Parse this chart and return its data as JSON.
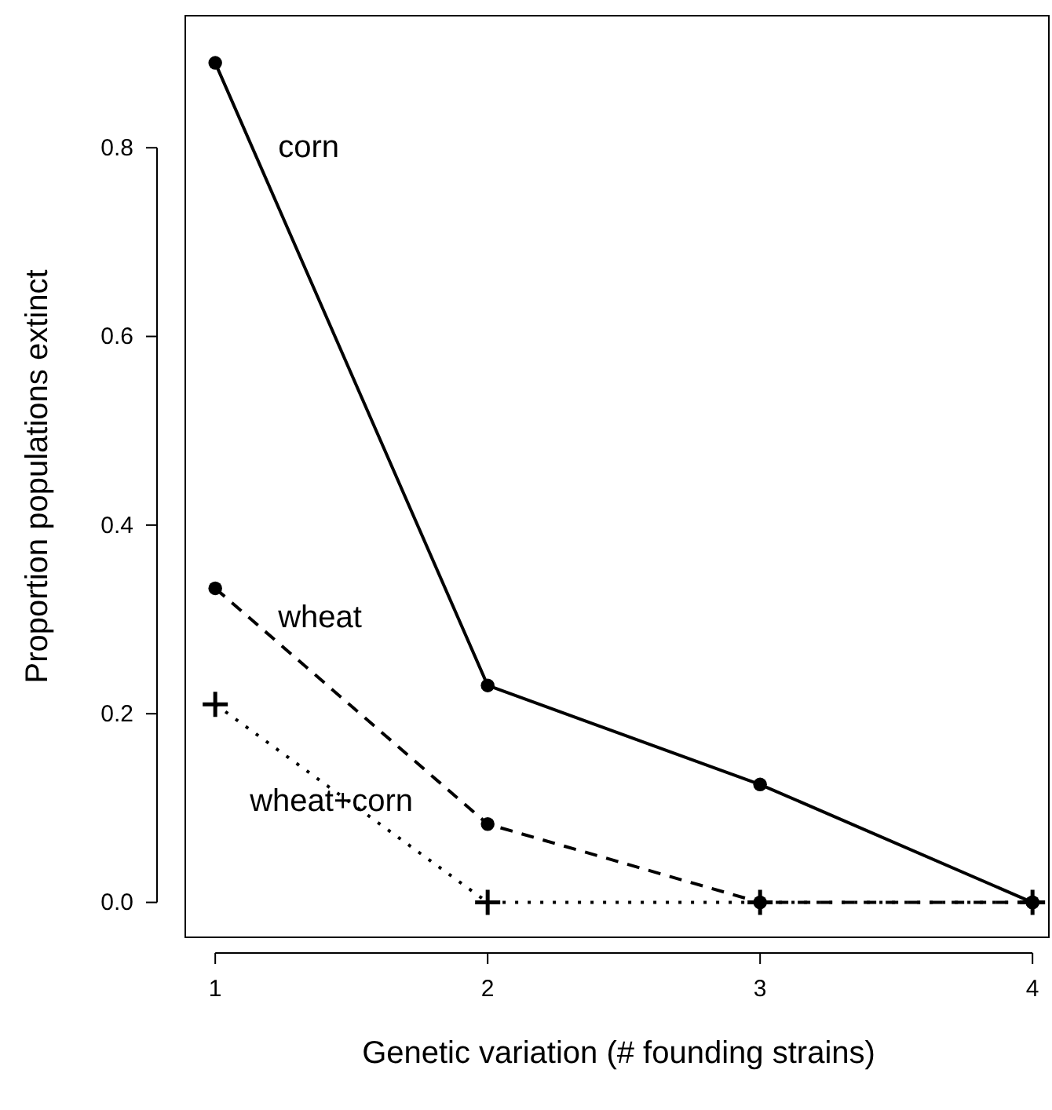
{
  "chart_data": {
    "type": "line",
    "xlabel": "Genetic variation (# founding strains)",
    "ylabel": "Proportion populations extinct",
    "x": [
      1,
      2,
      3,
      4
    ],
    "series": [
      {
        "name": "corn",
        "color": "#000000",
        "values": [
          0.89,
          0.23,
          0.125,
          0
        ],
        "marker": "circle",
        "line_style": "solid"
      },
      {
        "name": "wheat",
        "color": "#000000",
        "values": [
          0.333,
          0.083,
          0,
          0
        ],
        "marker": "circle",
        "line_style": "dashed"
      },
      {
        "name": "wheat+corn",
        "color": "#000000",
        "values": [
          0.21,
          0,
          0,
          0
        ],
        "marker": "cross",
        "line_style": "dotted"
      }
    ],
    "xlim": [
      0.89,
      4.06
    ],
    "ylim": [
      -0.037,
      0.94
    ],
    "xticks": [
      1,
      2,
      3,
      4
    ],
    "yticks": [
      {
        "value": 0,
        "label": "0.0"
      },
      {
        "value": 0.2,
        "label": "0.2"
      },
      {
        "value": 0.4,
        "label": "0.4"
      },
      {
        "value": 0.6,
        "label": "0.6"
      },
      {
        "value": 0.8,
        "label": "0.8"
      }
    ],
    "grid": false
  }
}
